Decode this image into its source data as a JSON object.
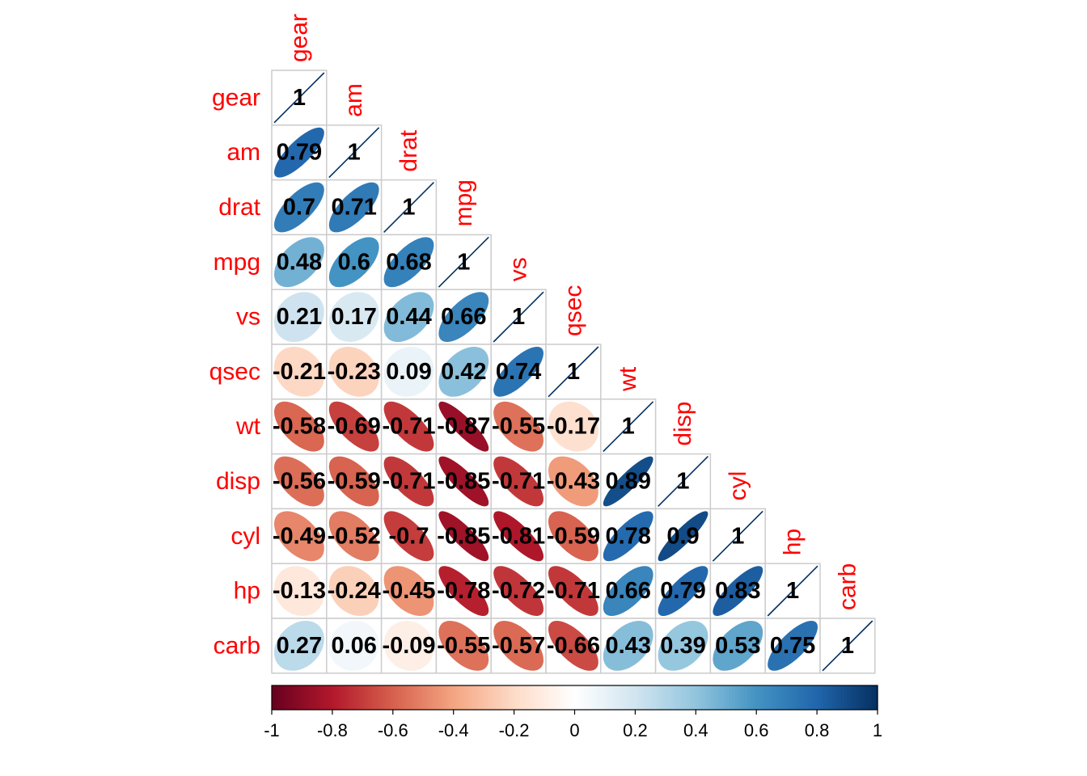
{
  "chart_data": {
    "type": "heatmap",
    "title": "",
    "variables": [
      "gear",
      "am",
      "drat",
      "mpg",
      "vs",
      "qsec",
      "wt",
      "disp",
      "cyl",
      "hp",
      "carb"
    ],
    "matrix": [
      [
        1
      ],
      [
        0.79,
        1
      ],
      [
        0.7,
        0.71,
        1
      ],
      [
        0.48,
        0.6,
        0.68,
        1
      ],
      [
        0.21,
        0.17,
        0.44,
        0.66,
        1
      ],
      [
        -0.21,
        -0.23,
        0.09,
        0.42,
        0.74,
        1
      ],
      [
        -0.58,
        -0.69,
        -0.71,
        -0.87,
        -0.55,
        -0.17,
        1
      ],
      [
        -0.56,
        -0.59,
        -0.71,
        -0.85,
        -0.71,
        -0.43,
        0.89,
        1
      ],
      [
        -0.49,
        -0.52,
        -0.7,
        -0.85,
        -0.81,
        -0.59,
        0.78,
        0.9,
        1
      ],
      [
        -0.13,
        -0.24,
        -0.45,
        -0.78,
        -0.72,
        -0.71,
        0.66,
        0.79,
        0.83,
        1
      ],
      [
        0.27,
        0.06,
        -0.09,
        -0.55,
        -0.57,
        -0.66,
        0.43,
        0.39,
        0.53,
        0.75,
        1
      ]
    ],
    "colorbar": {
      "range": [
        -1,
        1
      ],
      "ticks": [
        "-1",
        "-0.8",
        "-0.6",
        "-0.4",
        "-0.2",
        "0",
        "0.2",
        "0.4",
        "0.6",
        "0.8",
        "1"
      ],
      "colors": [
        "#67001f",
        "#b2182b",
        "#d6604d",
        "#f4a582",
        "#fddbc7",
        "#ffffff",
        "#d1e5f0",
        "#92c5de",
        "#4393c3",
        "#2166ac",
        "#053061"
      ]
    },
    "label_color": "#ff0000",
    "grid_color": "#cccccc",
    "method": "ellipse",
    "layout": "lower-triangle"
  }
}
